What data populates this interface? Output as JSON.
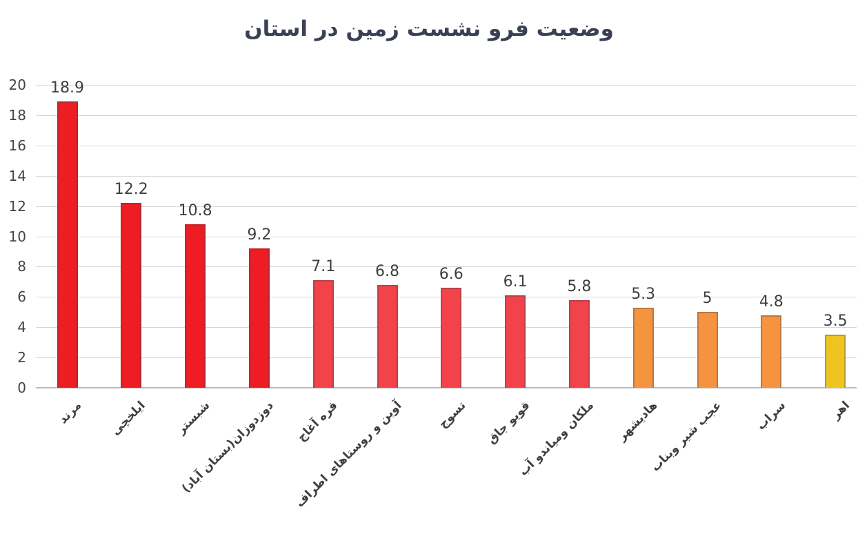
{
  "chart_data": {
    "type": "bar",
    "title": "وضعیت فرو نشست زمین در استان",
    "categories": [
      "مرند",
      "ایلخچی",
      "شبستر",
      "دوزدوزان(بستان آباد)",
      "قره آغاج",
      "آوین و روستاهای اطراف",
      "تسوج",
      "قویو جاق",
      "ملکان ومیاندو آب",
      "هادیشهر",
      "عجب شیر وبناب",
      "سراب",
      "اهر"
    ],
    "values": [
      18.9,
      12.2,
      10.8,
      9.2,
      7.1,
      6.8,
      6.6,
      6.1,
      5.8,
      5.3,
      5,
      4.8,
      3.5
    ],
    "value_labels": [
      "18.9",
      "12.2",
      "10.8",
      "9.2",
      "7.1",
      "6.8",
      "6.6",
      "6.1",
      "5.8",
      "5.3",
      "5",
      "4.8",
      "3.5"
    ],
    "bar_colors": [
      "#ee1c23",
      "#ee1c23",
      "#ee1c23",
      "#ee1c23",
      "#f2434a",
      "#f2434a",
      "#f2434a",
      "#f2434a",
      "#f2434a",
      "#f6933f",
      "#f6933f",
      "#f6933f",
      "#f0c41f"
    ],
    "ylim": [
      0,
      20
    ],
    "yticks": [
      "0",
      "2",
      "4",
      "6",
      "8",
      "10",
      "12",
      "14",
      "16",
      "18",
      "20"
    ],
    "grid": true,
    "legend_position": "none",
    "xlabel": "",
    "ylabel": ""
  },
  "colors": {
    "background": "#ffffff",
    "title_text": "#3a4154",
    "axis_text": "#444444",
    "value_label_text": "#3f3f3f",
    "category_label_text": "#3f3f3f",
    "gridline": "#d7d7d7",
    "axis_line": "#bdbdbd",
    "bar_red": "#ee1c23",
    "bar_light_red": "#f2434a",
    "bar_orange": "#f6933f",
    "bar_yellow": "#f0c41f"
  }
}
